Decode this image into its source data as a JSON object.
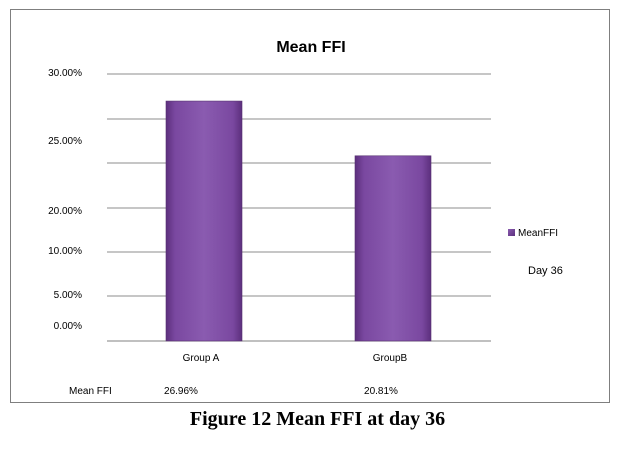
{
  "chart_data": {
    "type": "bar",
    "title": "Mean FFI",
    "categories": [
      "Group A",
      "GroupB"
    ],
    "series": [
      {
        "name": "MeanFFI",
        "values": [
          26.96,
          20.81
        ]
      }
    ],
    "y_tick_labels": [
      "0.00%",
      "5.00%",
      "10.00%",
      "20.00%",
      "25.00%",
      "30.00%"
    ],
    "ylim": [
      0,
      30
    ],
    "grid": true,
    "legend_position": "right",
    "legend_note": "Day 36",
    "data_table": {
      "row_label": "Mean FFI",
      "values": [
        "26.96%",
        "20.81%"
      ]
    },
    "bar_color": "#7f4aa0"
  },
  "caption": "Figure 12 Mean FFI at day 36"
}
